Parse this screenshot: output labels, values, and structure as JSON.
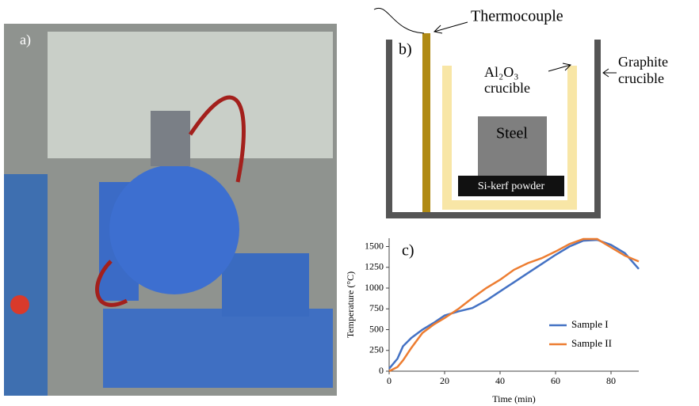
{
  "photo": {
    "label": "a)"
  },
  "diagram": {
    "label": "b)",
    "thermocouple": "Thermocouple",
    "alumina_crucible": [
      "Al₂O₃",
      "crucible"
    ],
    "graphite_crucible": [
      "Graphite",
      "crucible"
    ],
    "steel": "Steel",
    "powder": "Si-kerf powder"
  },
  "chart_data": {
    "type": "line",
    "label": "c)",
    "x_label": "Time (min)",
    "y_label": "Temperature (°C)",
    "x": [
      0,
      3,
      5,
      8,
      12,
      16,
      20,
      25,
      30,
      35,
      40,
      45,
      50,
      55,
      60,
      65,
      70,
      75,
      80,
      85,
      90
    ],
    "series": [
      {
        "name": "Sample I",
        "color": "#4472c4",
        "values": [
          30,
          150,
          300,
          400,
          500,
          580,
          670,
          720,
          760,
          850,
          960,
          1070,
          1180,
          1290,
          1400,
          1500,
          1570,
          1580,
          1520,
          1420,
          1230
        ]
      },
      {
        "name": "Sample II",
        "color": "#ed7d31",
        "values": [
          0,
          50,
          130,
          280,
          460,
          560,
          640,
          750,
          880,
          1000,
          1100,
          1220,
          1300,
          1360,
          1440,
          1530,
          1590,
          1590,
          1490,
          1390,
          1320
        ]
      }
    ],
    "xlim": [
      0,
      90
    ],
    "xticks": [
      0,
      20,
      40,
      60,
      80
    ],
    "ylim": [
      0,
      1600
    ],
    "yticks": [
      0,
      250,
      500,
      750,
      1000,
      1250,
      1500
    ]
  }
}
